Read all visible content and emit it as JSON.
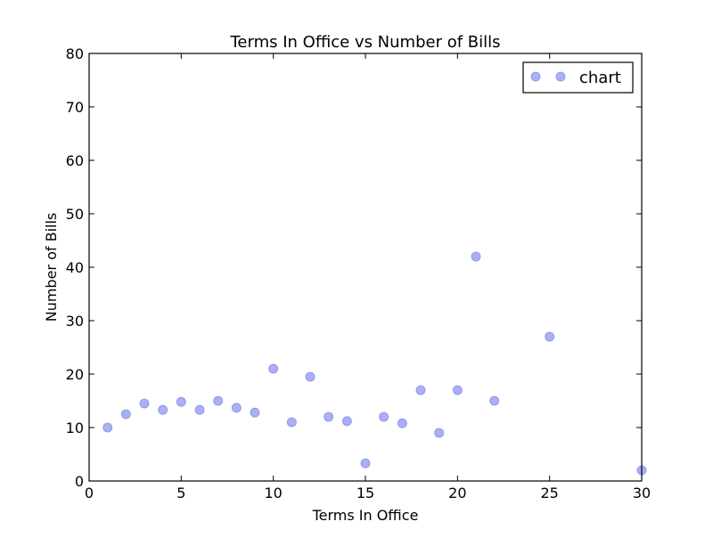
{
  "chart_data": {
    "type": "scatter",
    "title": "Terms In Office vs Number of Bills",
    "xlabel": "Terms In Office",
    "ylabel": "Number of Bills",
    "xlim": [
      0,
      30
    ],
    "ylim": [
      0,
      80
    ],
    "xticks": [
      0,
      5,
      10,
      15,
      20,
      25,
      30
    ],
    "yticks": [
      0,
      10,
      20,
      30,
      40,
      50,
      60,
      70,
      80
    ],
    "grid": false,
    "legend": {
      "location": "top-right",
      "entries": [
        "chart"
      ]
    },
    "marker_color": "#aab0f6",
    "marker_edge_color": "#8a8fe0",
    "series": [
      {
        "name": "chart",
        "points": [
          {
            "x": 1,
            "y": 10
          },
          {
            "x": 2,
            "y": 12.5
          },
          {
            "x": 3,
            "y": 14.5
          },
          {
            "x": 4,
            "y": 13.3
          },
          {
            "x": 5,
            "y": 14.8
          },
          {
            "x": 6,
            "y": 13.3
          },
          {
            "x": 7,
            "y": 15
          },
          {
            "x": 8,
            "y": 13.7
          },
          {
            "x": 9,
            "y": 12.8
          },
          {
            "x": 10,
            "y": 21
          },
          {
            "x": 11,
            "y": 11
          },
          {
            "x": 12,
            "y": 19.5
          },
          {
            "x": 13,
            "y": 12
          },
          {
            "x": 14,
            "y": 11.2
          },
          {
            "x": 15,
            "y": 3.3
          },
          {
            "x": 16,
            "y": 12
          },
          {
            "x": 17,
            "y": 10.8
          },
          {
            "x": 18,
            "y": 17
          },
          {
            "x": 19,
            "y": 9
          },
          {
            "x": 20,
            "y": 17
          },
          {
            "x": 21,
            "y": 42
          },
          {
            "x": 22,
            "y": 15
          },
          {
            "x": 25,
            "y": 27
          },
          {
            "x": 30,
            "y": 2
          }
        ]
      }
    ]
  }
}
